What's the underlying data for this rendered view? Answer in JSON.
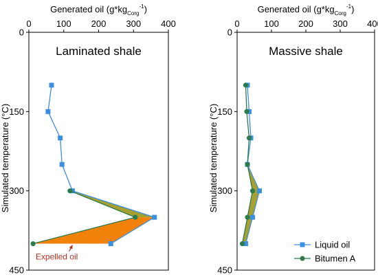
{
  "chart_data": [
    {
      "type": "line",
      "title": "Laminated shale",
      "xlabel_main": "Generated oil (g*kg",
      "xlabel_sub": "Corg",
      "xlabel_sup": "-1",
      "xlabel_close": ")",
      "ylabel": "Simulated temperature (°C)",
      "xlim": [
        0,
        400
      ],
      "ylim": [
        0,
        450
      ],
      "x_axis_position": "top",
      "y_inverted": true,
      "xticks": [
        0,
        100,
        200,
        300,
        400
      ],
      "yticks": [
        0,
        150,
        300,
        450
      ],
      "series": [
        {
          "name": "Liquid oil",
          "color": "#3a8fe0",
          "marker": "square",
          "points": [
            [
              65,
              100
            ],
            [
              55,
              150
            ],
            [
              90,
              200
            ],
            [
              95,
              250
            ],
            [
              125,
              300
            ],
            [
              360,
              350
            ],
            [
              235,
              400
            ]
          ]
        },
        {
          "name": "Bitumen A",
          "color": "#2e7a4c",
          "marker": "circle",
          "points": [
            [
              118,
              300
            ],
            [
              305,
              350
            ],
            [
              12,
              400
            ]
          ]
        }
      ],
      "fills": [
        {
          "between": "bitumen_and_oil",
          "y_range": [
            300,
            350
          ],
          "color": "#a6a030"
        },
        {
          "between": "bitumen_and_oil",
          "y_range": [
            350,
            400
          ],
          "color": "#f2820c"
        }
      ],
      "annotations": [
        {
          "text": "Expelled oil",
          "x": 80,
          "y": 430,
          "arrow_to": [
            125,
            400
          ]
        }
      ]
    },
    {
      "type": "line",
      "title": "Massive shale",
      "xlabel_main": "Generated oil (g*kg",
      "xlabel_sub": "Corg",
      "xlabel_sup": "-1",
      "xlabel_close": ")",
      "ylabel": "Simulated temperature (°C)",
      "xlim": [
        0,
        400
      ],
      "ylim": [
        0,
        450
      ],
      "x_axis_position": "top",
      "y_inverted": true,
      "xticks": [
        0,
        100,
        200,
        300,
        400
      ],
      "yticks": [
        0,
        150,
        300,
        450
      ],
      "series": [
        {
          "name": "Liquid oil",
          "color": "#3a8fe0",
          "marker": "square",
          "points": [
            [
              30,
              100
            ],
            [
              35,
              150
            ],
            [
              40,
              200
            ],
            [
              30,
              250
            ],
            [
              65,
              300
            ],
            [
              45,
              350
            ],
            [
              25,
              400
            ]
          ]
        },
        {
          "name": "Bitumen A",
          "color": "#2e7a4c",
          "marker": "circle",
          "points": [
            [
              25,
              100
            ],
            [
              28,
              150
            ],
            [
              35,
              200
            ],
            [
              30,
              250
            ],
            [
              45,
              300
            ],
            [
              30,
              350
            ],
            [
              15,
              400
            ]
          ]
        }
      ],
      "fills": [
        {
          "between": "bitumen_and_oil",
          "y_range": [
            250,
            400
          ],
          "color": "#a6a030"
        }
      ],
      "legend": {
        "position": "bottom-right",
        "entries": [
          "Liquid oil",
          "Bitumen A"
        ]
      }
    }
  ]
}
